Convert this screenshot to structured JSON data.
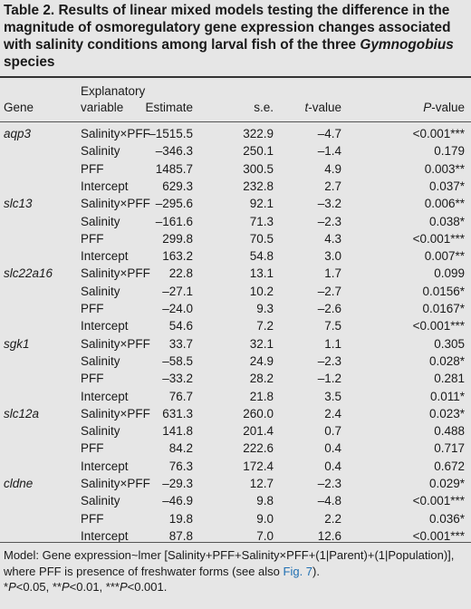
{
  "caption": {
    "prefix": "Table 2. Results of linear mixed models testing the difference in the magnitude of osmoregulatory gene expression changes associated with salinity conditions among larval fish of the three ",
    "genus": "Gymnogobius",
    "suffix": " species"
  },
  "headers": {
    "gene": "Gene",
    "variable_line1": "Explanatory",
    "variable_line2": "variable",
    "estimate": "Estimate",
    "se": "s.e.",
    "t_value_letter": "t",
    "t_value_rest": "-value",
    "p_value_letter": "P",
    "p_value_rest": "-value"
  },
  "rows": [
    {
      "gene": "aqp3",
      "variable": "Salinity×PFF",
      "estimate": "–1515.5",
      "se": "322.9",
      "t": "–4.7",
      "p": "<0.001***"
    },
    {
      "gene": "",
      "variable": "Salinity",
      "estimate": "–346.3",
      "se": "250.1",
      "t": "–1.4",
      "p": "0.179"
    },
    {
      "gene": "",
      "variable": "PFF",
      "estimate": "1485.7",
      "se": "300.5",
      "t": "4.9",
      "p": "0.003**"
    },
    {
      "gene": "",
      "variable": "Intercept",
      "estimate": "629.3",
      "se": "232.8",
      "t": "2.7",
      "p": "0.037*"
    },
    {
      "gene": "slc13",
      "variable": "Salinity×PFF",
      "estimate": "–295.6",
      "se": "92.1",
      "t": "–3.2",
      "p": "0.006**"
    },
    {
      "gene": "",
      "variable": "Salinity",
      "estimate": "–161.6",
      "se": "71.3",
      "t": "–2.3",
      "p": "0.038*"
    },
    {
      "gene": "",
      "variable": "PFF",
      "estimate": "299.8",
      "se": "70.5",
      "t": "4.3",
      "p": "<0.001***"
    },
    {
      "gene": "",
      "variable": "Intercept",
      "estimate": "163.2",
      "se": "54.8",
      "t": "3.0",
      "p": "0.007**"
    },
    {
      "gene": "slc22a16",
      "variable": "Salinity×PFF",
      "estimate": "22.8",
      "se": "13.1",
      "t": "1.7",
      "p": "0.099"
    },
    {
      "gene": "",
      "variable": "Salinity",
      "estimate": "–27.1",
      "se": "10.2",
      "t": "–2.7",
      "p": "0.0156*"
    },
    {
      "gene": "",
      "variable": "PFF",
      "estimate": "–24.0",
      "se": "9.3",
      "t": "–2.6",
      "p": "0.0167*"
    },
    {
      "gene": "",
      "variable": "Intercept",
      "estimate": "54.6",
      "se": "7.2",
      "t": "7.5",
      "p": "<0.001***"
    },
    {
      "gene": "sgk1",
      "variable": "Salinity×PFF",
      "estimate": "33.7",
      "se": "32.1",
      "t": "1.1",
      "p": "0.305"
    },
    {
      "gene": "",
      "variable": "Salinity",
      "estimate": "–58.5",
      "se": "24.9",
      "t": "–2.3",
      "p": "0.028*"
    },
    {
      "gene": "",
      "variable": "PFF",
      "estimate": "–33.2",
      "se": "28.2",
      "t": "–1.2",
      "p": "0.281"
    },
    {
      "gene": "",
      "variable": "Intercept",
      "estimate": "76.7",
      "se": "21.8",
      "t": "3.5",
      "p": "0.011*"
    },
    {
      "gene": "slc12a",
      "variable": "Salinity×PFF",
      "estimate": "631.3",
      "se": "260.0",
      "t": "2.4",
      "p": "0.023*"
    },
    {
      "gene": "",
      "variable": "Salinity",
      "estimate": "141.8",
      "se": "201.4",
      "t": "0.7",
      "p": "0.488"
    },
    {
      "gene": "",
      "variable": "PFF",
      "estimate": "84.2",
      "se": "222.6",
      "t": "0.4",
      "p": "0.717"
    },
    {
      "gene": "",
      "variable": "Intercept",
      "estimate": "76.3",
      "se": "172.4",
      "t": "0.4",
      "p": "0.672"
    },
    {
      "gene": "cldne",
      "variable": "Salinity×PFF",
      "estimate": "–29.3",
      "se": "12.7",
      "t": "–2.3",
      "p": "0.029*"
    },
    {
      "gene": "",
      "variable": "Salinity",
      "estimate": "–46.9",
      "se": "9.8",
      "t": "–4.8",
      "p": "<0.001***"
    },
    {
      "gene": "",
      "variable": "PFF",
      "estimate": "19.8",
      "se": "9.0",
      "t": "2.2",
      "p": "0.036*"
    },
    {
      "gene": "",
      "variable": "Intercept",
      "estimate": "87.8",
      "se": "7.0",
      "t": "12.6",
      "p": "<0.001***"
    }
  ],
  "footnote": {
    "model_text": "Model: Gene expression~lmer [Salinity+PFF+Salinity×PFF+(1|Parent)+(1|Population)], where PFF is presence of freshwater forms (see also ",
    "link": "Fig. 7",
    "model_end": ").",
    "sig1_p": "P",
    "sig1": "<0.05, **",
    "sig2_p": "P",
    "sig2": "<0.01, ***",
    "sig3_p": "P",
    "sig3": "<0.001.",
    "sig_prefix": "*"
  },
  "colors": {
    "background": "#e6e6e6",
    "text": "#1a1a1a",
    "link": "#1f6fb2"
  }
}
